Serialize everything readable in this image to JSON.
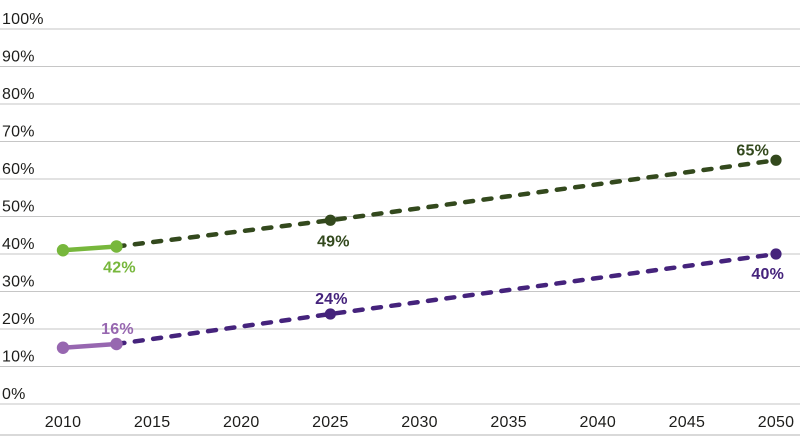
{
  "chart_data": {
    "type": "line",
    "title": "",
    "legend": "none",
    "grid": "horizontal-only",
    "x_axis": {
      "min": 2010,
      "max": 2050,
      "tick_step": 5,
      "ticks": [
        {
          "label": "2010",
          "value": 2010
        },
        {
          "label": "2015",
          "value": 2015
        },
        {
          "label": "2020",
          "value": 2020
        },
        {
          "label": "2025",
          "value": 2025
        },
        {
          "label": "2030",
          "value": 2030
        },
        {
          "label": "2035",
          "value": 2035
        },
        {
          "label": "2040",
          "value": 2040
        },
        {
          "label": "2045",
          "value": 2045
        },
        {
          "label": "2050",
          "value": 2050
        }
      ]
    },
    "y_axis": {
      "min": 0,
      "max": 100,
      "tick_step": 10,
      "ticks": [
        {
          "label": "100%",
          "value": 100
        },
        {
          "label": "90%",
          "value": 90
        },
        {
          "label": "80%",
          "value": 80
        },
        {
          "label": "70%",
          "value": 70
        },
        {
          "label": "60%",
          "value": 60
        },
        {
          "label": "50%",
          "value": 50
        },
        {
          "label": "40%",
          "value": 40
        },
        {
          "label": "30%",
          "value": 30
        },
        {
          "label": "20%",
          "value": 20
        },
        {
          "label": "10%",
          "value": 10
        },
        {
          "label": "0%",
          "value": 0
        }
      ]
    },
    "series": [
      {
        "id": "green",
        "historical": {
          "style": "solid",
          "color": "#77b73c",
          "points": [
            {
              "year": 2010,
              "value": 41
            },
            {
              "year": 2013,
              "value": 42,
              "label": "42%",
              "label_pos": "below"
            }
          ]
        },
        "projection": {
          "style": "dashed",
          "color": "#33491d",
          "points": [
            {
              "year": 2013,
              "value": 42
            },
            {
              "year": 2025,
              "value": 49,
              "label": "49%",
              "label_pos": "below"
            },
            {
              "year": 2050,
              "value": 65,
              "label": "65%",
              "label_pos": "above-left"
            }
          ]
        }
      },
      {
        "id": "purple",
        "historical": {
          "style": "solid",
          "color": "#9767b0",
          "points": [
            {
              "year": 2010,
              "value": 15
            },
            {
              "year": 2013,
              "value": 16,
              "label": "16%",
              "label_pos": "above"
            }
          ]
        },
        "projection": {
          "style": "dashed",
          "color": "#45237c",
          "points": [
            {
              "year": 2013,
              "value": 16
            },
            {
              "year": 2025,
              "value": 24,
              "label": "24%",
              "label_pos": "above"
            },
            {
              "year": 2050,
              "value": 40,
              "label": "40%",
              "label_pos": "below-left"
            }
          ]
        }
      }
    ],
    "colors": {
      "grid": "#c6c6c6",
      "baseline": "#b3b3b3",
      "axis_text": "#1d1d1b"
    }
  }
}
